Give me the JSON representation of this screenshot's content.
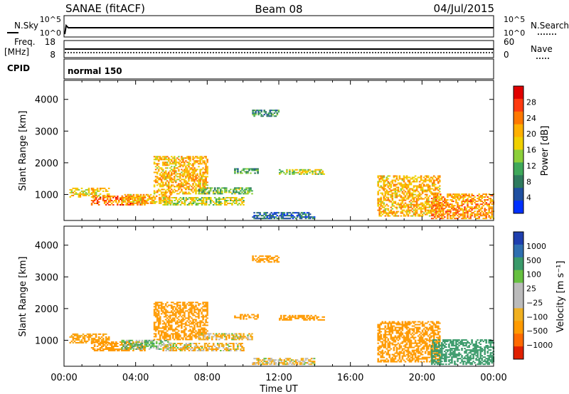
{
  "header": {
    "station": "SANAE (fitACF)",
    "beam": "Beam 08",
    "date": "04/Jul/2015"
  },
  "strips": {
    "nsky_label": "N.Sky",
    "nsky_ticks": [
      "10^5",
      "10^0"
    ],
    "nsearch_label": "N.Search",
    "nsearch_ticks": [
      "10^5",
      "10^0"
    ],
    "freq_label": "Freq.",
    "freq_unit": "[MHz]",
    "freq_ticks": [
      "18",
      "8"
    ],
    "nave_label": "Nave",
    "nave_ticks": [
      "60",
      "0"
    ],
    "cpid_label": "CPID",
    "cpid_value": "normal 150"
  },
  "chart_data": [
    {
      "type": "heatmap",
      "name": "power",
      "title": "Power",
      "ylabel": "Slant Range [km]",
      "xlabel": "Time UT",
      "ylim": [
        180,
        4600
      ],
      "yticks": [
        "4000",
        "3000",
        "2000",
        "1000"
      ],
      "xticks": [
        "00:00",
        "04:00",
        "08:00",
        "12:00",
        "16:00",
        "20:00",
        "00:00"
      ],
      "colorbar": {
        "label": "Power [dB]",
        "ticks": [
          "28",
          "24",
          "20",
          "16",
          "12",
          "8",
          "4"
        ],
        "colors": [
          "#e00000",
          "#ff3a10",
          "#ff7800",
          "#ffb000",
          "#f0d000",
          "#8ccf3a",
          "#3fa85a",
          "#2e7a5e",
          "#1f4fa0",
          "#0030ff"
        ]
      },
      "regions": [
        {
          "t0": 0.3,
          "t1": 2.5,
          "r0": 900,
          "r1": 1200,
          "v": 20
        },
        {
          "t0": 1.5,
          "t1": 4.5,
          "r0": 650,
          "r1": 950,
          "v": 26
        },
        {
          "t0": 3.2,
          "t1": 6.0,
          "r0": 700,
          "r1": 1000,
          "v": 22
        },
        {
          "t0": 5.0,
          "t1": 8.0,
          "r0": 1000,
          "r1": 2200,
          "v": 22
        },
        {
          "t0": 5.5,
          "t1": 10.0,
          "r0": 650,
          "r1": 900,
          "v": 18
        },
        {
          "t0": 7.5,
          "t1": 10.5,
          "r0": 1000,
          "r1": 1200,
          "v": 14
        },
        {
          "t0": 9.5,
          "t1": 10.8,
          "r0": 1650,
          "r1": 1800,
          "v": 12
        },
        {
          "t0": 12.0,
          "t1": 14.5,
          "r0": 1620,
          "r1": 1800,
          "v": 18
        },
        {
          "t0": 10.5,
          "t1": 12.0,
          "r0": 3450,
          "r1": 3650,
          "v": 10
        },
        {
          "t0": 10.5,
          "t1": 14.0,
          "r0": 220,
          "r1": 420,
          "v": 8
        },
        {
          "t0": 17.5,
          "t1": 21.0,
          "r0": 300,
          "r1": 1600,
          "v": 22
        },
        {
          "t0": 20.5,
          "t1": 24.0,
          "r0": 220,
          "r1": 1000,
          "v": 24
        }
      ]
    },
    {
      "type": "heatmap",
      "name": "velocity",
      "title": "Velocity",
      "ylabel": "Slant Range [km]",
      "xlabel": "Time UT",
      "ylim": [
        180,
        4600
      ],
      "yticks": [
        "4000",
        "3000",
        "2000",
        "1000"
      ],
      "xticks": [
        "00:00",
        "04:00",
        "08:00",
        "12:00",
        "16:00",
        "20:00",
        "00:00"
      ],
      "colorbar": {
        "label": "Velocity [m s⁻¹]",
        "ticks": [
          "1000",
          "500",
          "100",
          "25",
          "−25",
          "−100",
          "−500",
          "−1000"
        ],
        "colors": [
          "#1f3fae",
          "#2f6fb0",
          "#3a9a6a",
          "#66c040",
          "#bbbbbb",
          "#bbbbbb",
          "#f0b020",
          "#ff9a00",
          "#ff6a00",
          "#e02000"
        ]
      },
      "regions": [
        {
          "t0": 0.3,
          "t1": 2.5,
          "r0": 900,
          "r1": 1200,
          "v": -150
        },
        {
          "t0": 1.5,
          "t1": 4.5,
          "r0": 650,
          "r1": 950,
          "v": -300
        },
        {
          "t0": 3.2,
          "t1": 6.0,
          "r0": 700,
          "r1": 1000,
          "v": 80
        },
        {
          "t0": 5.0,
          "t1": 8.0,
          "r0": 1000,
          "r1": 2200,
          "v": -200
        },
        {
          "t0": 5.5,
          "t1": 10.0,
          "r0": 650,
          "r1": 900,
          "v": -60
        },
        {
          "t0": 7.5,
          "t1": 10.5,
          "r0": 1000,
          "r1": 1200,
          "v": -50
        },
        {
          "t0": 9.5,
          "t1": 10.8,
          "r0": 1650,
          "r1": 1800,
          "v": -300
        },
        {
          "t0": 12.0,
          "t1": 14.5,
          "r0": 1620,
          "r1": 1800,
          "v": -400
        },
        {
          "t0": 10.5,
          "t1": 12.0,
          "r0": 3450,
          "r1": 3650,
          "v": -300
        },
        {
          "t0": 10.5,
          "t1": 14.0,
          "r0": 220,
          "r1": 420,
          "v": -40
        },
        {
          "t0": 17.5,
          "t1": 21.0,
          "r0": 300,
          "r1": 1600,
          "v": -400
        },
        {
          "t0": 20.5,
          "t1": 24.0,
          "r0": 220,
          "r1": 1000,
          "v": 300
        }
      ]
    }
  ]
}
